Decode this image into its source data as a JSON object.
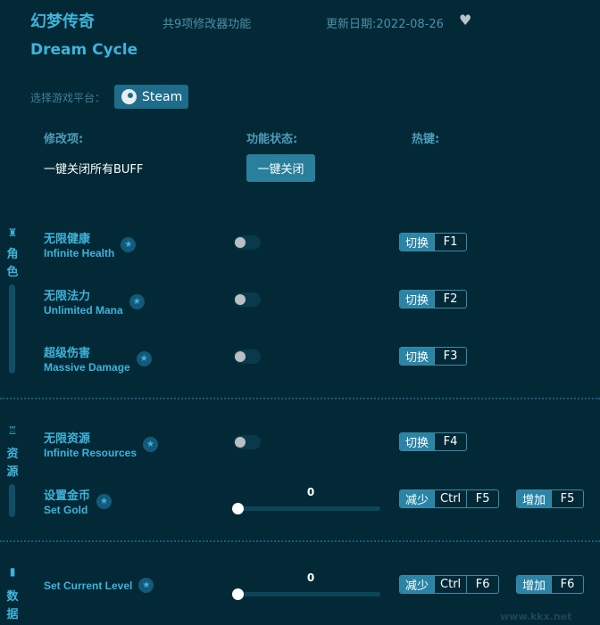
{
  "header": {
    "title": "幻梦传奇",
    "subtitle": "Dream Cycle",
    "feature_count": "共9项修改器功能",
    "update_date": "更新日期:2022-08-26",
    "favorite_icon": "heart-icon"
  },
  "platform": {
    "label": "选择游戏平台：",
    "button": "Steam"
  },
  "columns": {
    "item": "修改项:",
    "status": "功能状态:",
    "hotkey": "热键:"
  },
  "global": {
    "label": "一键关闭所有BUFF",
    "button": "一键关闭"
  },
  "categories": [
    {
      "label_chars": [
        "角",
        "色"
      ],
      "icon": "character-icon"
    },
    {
      "label_chars": [
        "资",
        "源"
      ],
      "icon": "resources-icon"
    },
    {
      "label_chars": [
        "数",
        "据"
      ],
      "icon": "data-icon"
    }
  ],
  "items": [
    {
      "cn": "无限健康",
      "en": "Infinite Health",
      "type": "toggle",
      "on": false,
      "hotkey": {
        "action": "切换",
        "key": "F1"
      }
    },
    {
      "cn": "无限法力",
      "en": "Unlimited Mana",
      "type": "toggle",
      "on": false,
      "hotkey": {
        "action": "切换",
        "key": "F2"
      }
    },
    {
      "cn": "超级伤害",
      "en": "Massive Damage",
      "type": "toggle",
      "on": false,
      "hotkey": {
        "action": "切换",
        "key": "F3"
      }
    },
    {
      "cn": "无限资源",
      "en": "Infinite Resources",
      "type": "toggle",
      "on": false,
      "hotkey": {
        "action": "切换",
        "key": "F4"
      }
    },
    {
      "cn": "设置金币",
      "en": "Set Gold",
      "type": "slider",
      "value": "0",
      "dec": {
        "action": "减少",
        "mod": "Ctrl",
        "key": "F5"
      },
      "inc": {
        "action": "增加",
        "key": "F5"
      }
    },
    {
      "cn": "",
      "en": "Set Current Level",
      "type": "slider",
      "value": "0",
      "dec": {
        "action": "减少",
        "mod": "Ctrl",
        "key": "F6"
      },
      "inc": {
        "action": "增加",
        "key": "F6"
      }
    }
  ],
  "watermark": "www.kkx.net",
  "colors": {
    "background": "#032937",
    "accent": "#3fb3da",
    "button": "#2a84a6"
  }
}
